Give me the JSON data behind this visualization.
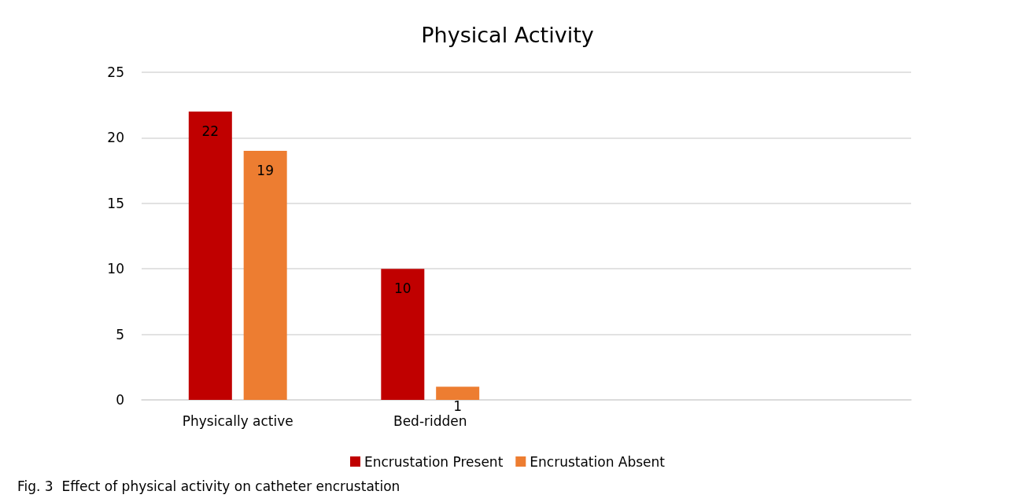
{
  "chart_data": {
    "type": "bar",
    "title": "Physical Activity",
    "categories": [
      "Physically active",
      "Bed-ridden",
      null,
      null
    ],
    "series": [
      {
        "name": "Encrustation Present",
        "color": "#c00000",
        "values": [
          22,
          10,
          null,
          null
        ]
      },
      {
        "name": "Encrustation Absent",
        "color": "#ed7d31",
        "values": [
          19,
          1,
          null,
          null
        ]
      }
    ],
    "ylim": [
      0,
      25
    ],
    "yticks": [
      0,
      5,
      10,
      15,
      20,
      25
    ],
    "grid": "y",
    "legend": "bottom",
    "data_labels": true,
    "annotations": [
      "Fig. 3  Effect of physical activity on catheter encrustation"
    ]
  }
}
